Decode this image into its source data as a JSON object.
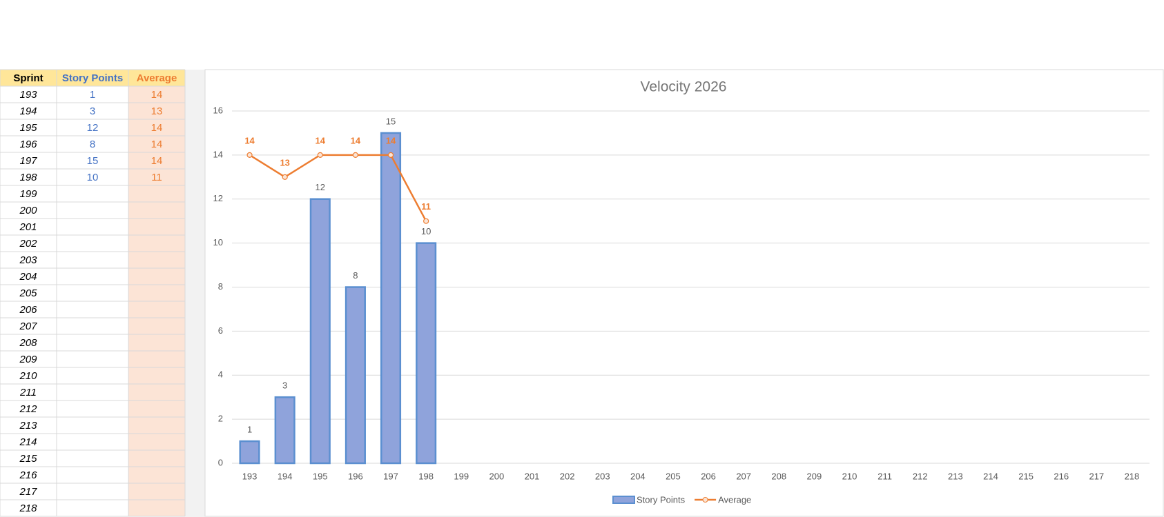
{
  "table": {
    "header": [
      "Sprint",
      "Story Points",
      "Average"
    ],
    "rows": [
      [
        193,
        1,
        14
      ],
      [
        194,
        3,
        13
      ],
      [
        195,
        12,
        14
      ],
      [
        196,
        8,
        14
      ],
      [
        197,
        15,
        14
      ],
      [
        198,
        10,
        11
      ],
      [
        199,
        null,
        null
      ],
      [
        200,
        null,
        null
      ],
      [
        201,
        null,
        null
      ],
      [
        202,
        null,
        null
      ],
      [
        203,
        null,
        null
      ],
      [
        204,
        null,
        null
      ],
      [
        205,
        null,
        null
      ],
      [
        206,
        null,
        null
      ],
      [
        207,
        null,
        null
      ],
      [
        208,
        null,
        null
      ],
      [
        209,
        null,
        null
      ],
      [
        210,
        null,
        null
      ],
      [
        211,
        null,
        null
      ],
      [
        212,
        null,
        null
      ],
      [
        213,
        null,
        null
      ],
      [
        214,
        null,
        null
      ],
      [
        215,
        null,
        null
      ],
      [
        216,
        null,
        null
      ],
      [
        217,
        null,
        null
      ],
      [
        218,
        null,
        null
      ]
    ]
  },
  "chart_data": {
    "type": "bar-line",
    "title": "Velocity 2026",
    "categories": [
      "193",
      "194",
      "195",
      "196",
      "197",
      "198",
      "199",
      "200",
      "201",
      "202",
      "203",
      "204",
      "205",
      "206",
      "207",
      "208",
      "209",
      "210",
      "211",
      "212",
      "213",
      "214",
      "215",
      "216",
      "217",
      "218"
    ],
    "series": [
      {
        "name": "Story Points",
        "type": "bar",
        "color": "#8fa3db",
        "values": [
          1,
          3,
          12,
          8,
          15,
          10,
          null,
          null,
          null,
          null,
          null,
          null,
          null,
          null,
          null,
          null,
          null,
          null,
          null,
          null,
          null,
          null,
          null,
          null,
          null,
          null
        ]
      },
      {
        "name": "Average",
        "type": "line",
        "color": "#ed7d31",
        "values": [
          14,
          13,
          14,
          14,
          14,
          11,
          null,
          null,
          null,
          null,
          null,
          null,
          null,
          null,
          null,
          null,
          null,
          null,
          null,
          null,
          null,
          null,
          null,
          null,
          null,
          null
        ]
      }
    ],
    "ylim": [
      0,
      16
    ],
    "yticks": [
      0,
      2,
      4,
      6,
      8,
      10,
      12,
      14,
      16
    ],
    "grid": true,
    "legend": "bottom"
  }
}
